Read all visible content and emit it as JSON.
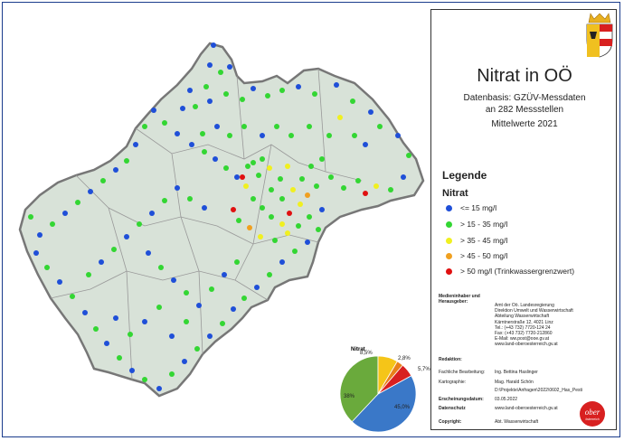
{
  "title": "Nitrat in OÖ",
  "subtitle": [
    "Datenbasis: GZÜV-Messdaten",
    "an 282 Messstellen",
    "Mittelwerte 2021"
  ],
  "legend": {
    "title": "Legende",
    "subtitle": "Nitrat",
    "items": [
      {
        "label": "<= 15 mg/l",
        "color": "#1f4fd8"
      },
      {
        "label": "> 15 - 35 mg/l",
        "color": "#33d633"
      },
      {
        "label": "> 35 - 45 mg/l",
        "color": "#f0f020"
      },
      {
        "label": "> 45 - 50 mg/l",
        "color": "#f0a020"
      },
      {
        "label": "> 50 mg/l (Trinkwassergrenzwert)",
        "color": "#e01010"
      }
    ]
  },
  "map_label": "Nitrat",
  "pie": {
    "slices": [
      {
        "label": "45,0%",
        "value": 45.0,
        "color": "#3a78c8"
      },
      {
        "label": "38%",
        "value": 38.0,
        "color": "#6aaa3c"
      },
      {
        "label": "8,5%",
        "value": 8.5,
        "color": "#f5c518"
      },
      {
        "label": "2,8%",
        "value": 2.8,
        "color": "#e8801a"
      },
      {
        "label": "5,7%",
        "value": 5.7,
        "color": "#d82020"
      }
    ]
  },
  "imprint": {
    "owner_label": "Medieninhaber und Herausgeber:",
    "owner_lines": [
      "Amt der Oö. Landesregierung",
      "Direktion Umwelt und Wasserwirtschaft",
      "Abteilung Wasserwirtschaft",
      "Kärntnerstraße 12, 4021 Linz",
      "Tel.: (+43 732) 7720-124 24",
      "Fax: (+43 732) 7720-212860",
      "E-Mail: ww.post@ooe.gv.at",
      "www.land-oberoesterreich.gv.at"
    ],
    "redaktion_label": "Redaktion:",
    "rows": [
      {
        "label": "Fachliche Bearbeitung:",
        "value": "Ing. Bettina Haslinger"
      },
      {
        "label": "Kartographie:",
        "value": "Mag. Harald Schön"
      },
      {
        "label": "",
        "value": "D:\\Projekte\\Anfragen\\2022\\0602_Has_Pesti"
      },
      {
        "label": "Erscheinungsdatum:",
        "value": "03.05.2022"
      },
      {
        "label": "Datenschutz",
        "value": "www.land-oberoesterreich.gv.at"
      },
      {
        "label": "Copyright:",
        "value": "Abt. Wasserwirtschaft"
      }
    ]
  },
  "logo_text": [
    "ober",
    "österreich"
  ]
}
